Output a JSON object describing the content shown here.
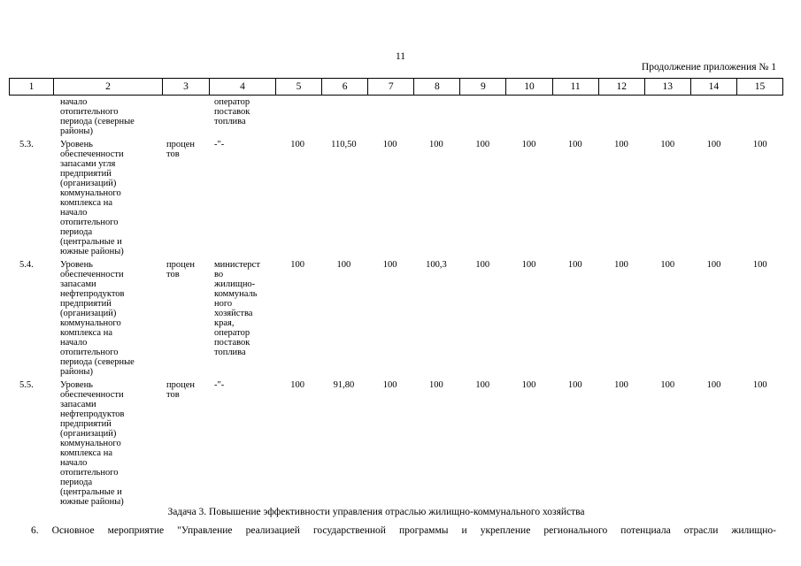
{
  "page": {
    "number": "11",
    "continuation": "Продолжение приложения № 1"
  },
  "table": {
    "column_numbers": [
      "1",
      "2",
      "3",
      "4",
      "5",
      "6",
      "7",
      "8",
      "9",
      "10",
      "11",
      "12",
      "13",
      "14",
      "15"
    ],
    "rows": [
      {
        "num": "",
        "indicator": "начало\nотопительного\nпериода (северные\nрайоны)",
        "unit": "",
        "responsible": "оператор\nпоставок\nтоплива",
        "values": [
          "",
          "",
          "",
          "",
          "",
          "",
          "",
          "",
          "",
          "",
          ""
        ]
      },
      {
        "num": "5.3.",
        "indicator": "Уровень\nобеспеченности\nзапасами угля\nпредприятий\n(организаций)\nкоммунального\nкомплекса на\nначало\nотопительного\nпериода\n(центральные и\nюжные районы)",
        "unit": "процен\nтов",
        "responsible": "-\"-",
        "values": [
          "100",
          "110,50",
          "100",
          "100",
          "100",
          "100",
          "100",
          "100",
          "100",
          "100",
          "100"
        ]
      },
      {
        "num": "5.4.",
        "indicator": "Уровень\nобеспеченности\nзапасами\nнефтепродуктов\nпредприятий\n(организаций)\nкоммунального\nкомплекса на\nначало\nотопительного\nпериода (северные\nрайоны)",
        "unit": "процен\nтов",
        "responsible": "министерст\nво\nжилищно-\nкоммуналь\nного\nхозяйства\nкрая,\nоператор\nпоставок\nтоплива",
        "values": [
          "100",
          "100",
          "100",
          "100,3",
          "100",
          "100",
          "100",
          "100",
          "100",
          "100",
          "100"
        ]
      },
      {
        "num": "5.5.",
        "indicator": "Уровень\nобеспеченности\nзапасами\nнефтепродуктов\nпредприятий\n(организаций)\nкоммунального\nкомплекса на\nначало\nотопительного\nпериода\n(центральные и\nюжные районы)",
        "unit": "процен\nтов",
        "responsible": "-\"-",
        "values": [
          "100",
          "91,80",
          "100",
          "100",
          "100",
          "100",
          "100",
          "100",
          "100",
          "100",
          "100"
        ]
      }
    ]
  },
  "footer": {
    "task_line": "Задача 3. Повышение эффективности управления отраслью жилищно-коммунального хозяйства",
    "item_number": "6.",
    "item_text": "Основное мероприятие \"Управление реализацией государственной программы и укрепление регионального потенциала отрасли жилищно-"
  }
}
